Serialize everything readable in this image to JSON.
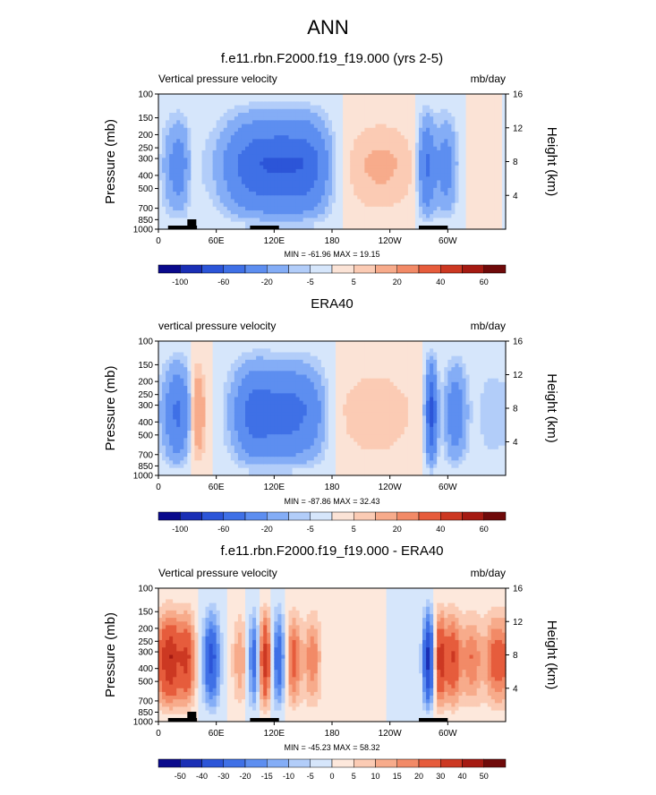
{
  "page": {
    "title": "ANN"
  },
  "colors": {
    "model_scale": [
      "#0a0a8c",
      "#1a2fb5",
      "#2c55d8",
      "#3f70e6",
      "#5d8ef0",
      "#84adf6",
      "#b2cdf9",
      "#d6e6fb",
      "#fbe3d6",
      "#fbcbb4",
      "#f7ab8b",
      "#f28a67",
      "#e65c3c",
      "#cc3822",
      "#a51a12",
      "#6f0a0a"
    ],
    "diff_scale": [
      "#0a0a8c",
      "#1a2fb5",
      "#2c55d8",
      "#3f70e6",
      "#5d8ef0",
      "#84adf6",
      "#b2cdf9",
      "#d6e6fb",
      "#fde8dc",
      "#fbcbb4",
      "#f7ab8b",
      "#f28a67",
      "#e65c3c",
      "#cc3822",
      "#a51a12",
      "#6f0a0a"
    ]
  },
  "panels": [
    {
      "title": "f.e11.rbn.F2000.f19_f19.000 (yrs 2-5)",
      "left_label": "Vertical pressure velocity",
      "right_label": "mb/day",
      "stats": "MIN = -61.96  MAX = 19.15",
      "show_topography": true,
      "scale_key": "model_scale",
      "colorbar_labels": [
        "-100",
        "-60",
        "-20",
        "-5",
        "5",
        "20",
        "40",
        "60"
      ],
      "colorbar_label_slots": [
        1,
        3,
        5,
        7,
        9,
        11,
        13,
        15
      ]
    },
    {
      "title": "ERA40",
      "left_label": "vertical pressure velocity",
      "right_label": "mb/day",
      "stats": "MIN = -87.86  MAX = 32.43",
      "show_topography": false,
      "scale_key": "model_scale",
      "colorbar_labels": [
        "-100",
        "-60",
        "-20",
        "-5",
        "5",
        "20",
        "40",
        "60"
      ],
      "colorbar_label_slots": [
        1,
        3,
        5,
        7,
        9,
        11,
        13,
        15
      ]
    },
    {
      "title": "f.e11.rbn.F2000.f19_f19.000 - ERA40",
      "left_label": "Vertical pressure velocity",
      "right_label": "mb/day",
      "stats": "MIN = -45.23  MAX = 58.32",
      "show_topography": true,
      "scale_key": "diff_scale",
      "colorbar_labels": [
        "-50",
        "-40",
        "-30",
        "-20",
        "-15",
        "-10",
        "-5",
        "0",
        "5",
        "10",
        "15",
        "20",
        "30",
        "40",
        "50"
      ],
      "colorbar_label_slots": [
        1,
        2,
        3,
        4,
        5,
        6,
        7,
        8,
        9,
        10,
        11,
        12,
        13,
        14,
        15
      ]
    }
  ],
  "chart_data": [
    {
      "type": "heatmap",
      "title": "f.e11.rbn.F2000.f19_f19.000 (yrs 2-5)",
      "ylabel": "Pressure (mb)",
      "y2label": "Height (km)",
      "xticks": [
        "0",
        "60E",
        "120E",
        "180",
        "120W",
        "60W"
      ],
      "xtick_lon": [
        0,
        60,
        120,
        180,
        240,
        300
      ],
      "xlim": [
        0,
        360
      ],
      "yticks": [
        "100",
        "150",
        "200",
        "250",
        "300",
        "400",
        "500",
        "700",
        "850",
        "1000"
      ],
      "ytick_values": [
        100,
        150,
        200,
        250,
        300,
        400,
        500,
        700,
        850,
        1000
      ],
      "ylim": [
        100,
        1000
      ],
      "yscale": "log",
      "y2ticks": [
        "4",
        "8",
        "12",
        "16"
      ],
      "units": "mb/day",
      "levels": [
        -100,
        -80,
        -60,
        -40,
        -20,
        -10,
        -5,
        0,
        5,
        10,
        20,
        30,
        40,
        60,
        80
      ],
      "min": -61.96,
      "max": 19.15,
      "features": [
        {
          "lon": 22,
          "amp": -30,
          "width": 12
        },
        {
          "lon": 35,
          "amp": 12,
          "width": 6
        },
        {
          "lon": 95,
          "amp": -45,
          "width": 22
        },
        {
          "lon": 135,
          "amp": -50,
          "width": 22
        },
        {
          "lon": 160,
          "amp": -25,
          "width": 14
        },
        {
          "lon": 230,
          "amp": 12,
          "width": 28
        },
        {
          "lon": 278,
          "amp": -45,
          "width": 6
        },
        {
          "lon": 298,
          "amp": -30,
          "width": 8
        },
        {
          "lon": 340,
          "amp": 5,
          "width": 15
        }
      ]
    },
    {
      "type": "heatmap",
      "title": "ERA40",
      "ylabel": "Pressure (mb)",
      "y2label": "Height (km)",
      "xticks": [
        "0",
        "60E",
        "120E",
        "180",
        "120W",
        "60W"
      ],
      "xtick_lon": [
        0,
        60,
        120,
        180,
        240,
        300
      ],
      "xlim": [
        0,
        360
      ],
      "yticks": [
        "100",
        "150",
        "200",
        "250",
        "300",
        "400",
        "500",
        "700",
        "850",
        "1000"
      ],
      "ytick_values": [
        100,
        150,
        200,
        250,
        300,
        400,
        500,
        700,
        850,
        1000
      ],
      "ylim": [
        100,
        1000
      ],
      "yscale": "log",
      "y2ticks": [
        "4",
        "8",
        "12",
        "16"
      ],
      "units": "mb/day",
      "levels": [
        -100,
        -80,
        -60,
        -40,
        -20,
        -10,
        -5,
        0,
        5,
        10,
        20,
        30,
        40,
        60,
        80
      ],
      "min": -87.86,
      "max": 32.43,
      "features": [
        {
          "lon": 20,
          "amp": -45,
          "width": 10
        },
        {
          "lon": 40,
          "amp": 25,
          "width": 6
        },
        {
          "lon": 100,
          "amp": -50,
          "width": 16
        },
        {
          "lon": 135,
          "amp": -45,
          "width": 16
        },
        {
          "lon": 160,
          "amp": -20,
          "width": 12
        },
        {
          "lon": 225,
          "amp": 10,
          "width": 30
        },
        {
          "lon": 283,
          "amp": -70,
          "width": 4
        },
        {
          "lon": 308,
          "amp": -35,
          "width": 8
        },
        {
          "lon": 345,
          "amp": -10,
          "width": 10
        }
      ]
    },
    {
      "type": "heatmap",
      "title": "f.e11.rbn.F2000.f19_f19.000 - ERA40",
      "ylabel": "Pressure (mb)",
      "y2label": "Height (km)",
      "xticks": [
        "0",
        "60E",
        "120E",
        "180",
        "120W",
        "60W"
      ],
      "xtick_lon": [
        0,
        60,
        120,
        180,
        240,
        300
      ],
      "xlim": [
        0,
        360
      ],
      "yticks": [
        "100",
        "150",
        "200",
        "250",
        "300",
        "400",
        "500",
        "700",
        "850",
        "1000"
      ],
      "ytick_values": [
        100,
        150,
        200,
        250,
        300,
        400,
        500,
        700,
        850,
        1000
      ],
      "ylim": [
        100,
        1000
      ],
      "yscale": "log",
      "y2ticks": [
        "4",
        "8",
        "12",
        "16"
      ],
      "units": "mb/day",
      "levels": [
        -50,
        -40,
        -30,
        -20,
        -15,
        -10,
        -5,
        0,
        5,
        10,
        15,
        20,
        30,
        40,
        50
      ],
      "min": -45.23,
      "max": 58.32,
      "features": [
        {
          "lon": 12,
          "amp": 40,
          "width": 8
        },
        {
          "lon": 30,
          "amp": 30,
          "width": 6
        },
        {
          "lon": 55,
          "amp": -35,
          "width": 6
        },
        {
          "lon": 85,
          "amp": 15,
          "width": 6
        },
        {
          "lon": 100,
          "amp": -30,
          "width": 5
        },
        {
          "lon": 110,
          "amp": 40,
          "width": 5
        },
        {
          "lon": 125,
          "amp": -30,
          "width": 5
        },
        {
          "lon": 140,
          "amp": 25,
          "width": 6
        },
        {
          "lon": 160,
          "amp": 20,
          "width": 6
        },
        {
          "lon": 280,
          "amp": -45,
          "width": 4
        },
        {
          "lon": 292,
          "amp": 35,
          "width": 4
        },
        {
          "lon": 305,
          "amp": 30,
          "width": 6
        },
        {
          "lon": 325,
          "amp": 20,
          "width": 8
        },
        {
          "lon": 350,
          "amp": 25,
          "width": 8
        }
      ]
    }
  ],
  "axis_labels": {
    "ylabel": "Pressure (mb)",
    "y2label": "Height (km)"
  }
}
